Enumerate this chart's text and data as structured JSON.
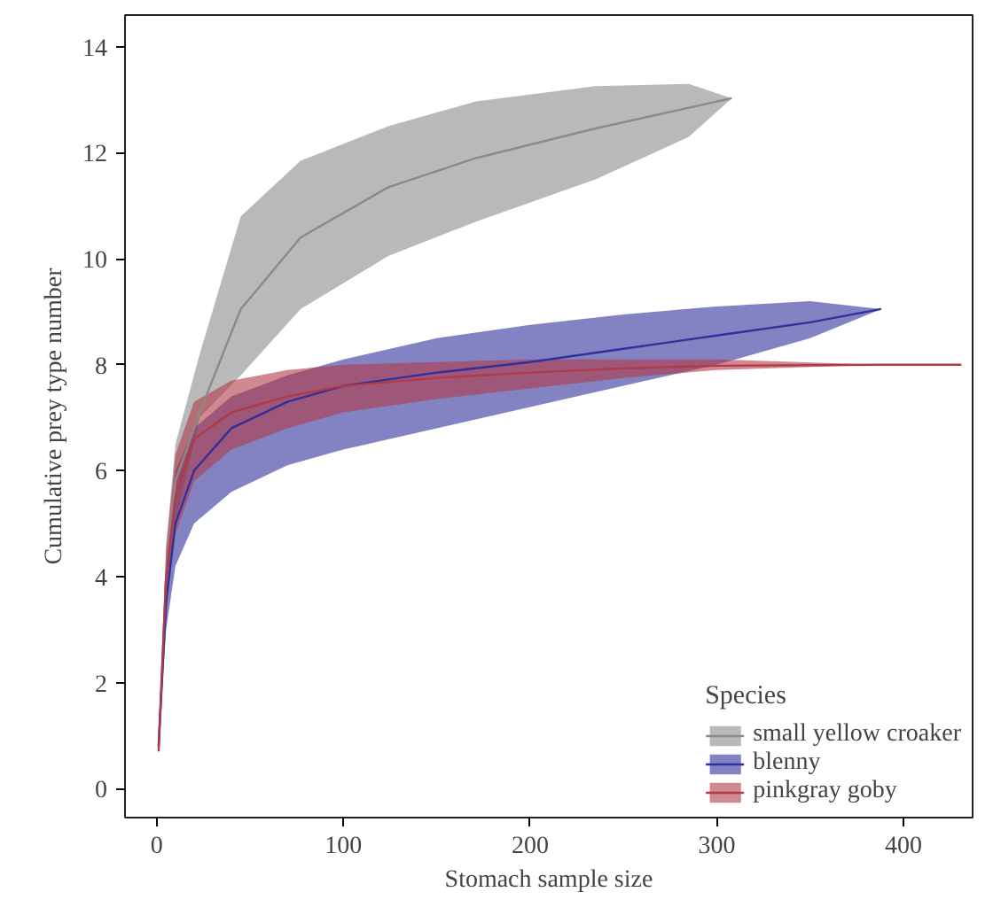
{
  "chart_data": {
    "type": "line",
    "xlabel": "Stomach sample size",
    "ylabel": "Cumulative prey type number",
    "legend_title": "Species",
    "legend": "bottom right",
    "grid": false,
    "xlim": [
      -17,
      437
    ],
    "ylim": [
      -0.55,
      14.6
    ],
    "xticks": [
      0,
      100,
      200,
      300,
      400
    ],
    "yticks": [
      0,
      2,
      4,
      6,
      8,
      10,
      12,
      14
    ],
    "series": [
      {
        "name": "small yellow croaker",
        "color": "#8a8a8a",
        "x": [
          1,
          5,
          10,
          23,
          45,
          77,
          124,
          171,
          235,
          285,
          308
        ],
        "values": [
          0.8,
          4.0,
          5.8,
          7.1,
          9.05,
          10.4,
          11.35,
          11.9,
          12.46,
          12.85,
          13.03
        ],
        "lower": [
          0.8,
          3.5,
          5.0,
          7.0,
          7.8,
          9.05,
          10.05,
          10.7,
          11.5,
          12.3,
          13.03
        ],
        "upper": [
          0.8,
          4.6,
          6.5,
          8.2,
          10.8,
          11.85,
          12.5,
          12.97,
          13.26,
          13.3,
          13.03
        ]
      },
      {
        "name": "blenny",
        "color": "#30309c",
        "x": [
          1,
          5,
          10,
          20,
          40,
          70,
          100,
          150,
          200,
          250,
          300,
          350,
          388
        ],
        "values": [
          0.8,
          3.5,
          5.0,
          6.0,
          6.8,
          7.3,
          7.6,
          7.85,
          8.05,
          8.3,
          8.55,
          8.8,
          9.05
        ],
        "lower": [
          0.8,
          3.0,
          4.2,
          5.0,
          5.6,
          6.1,
          6.4,
          6.8,
          7.2,
          7.6,
          8.0,
          8.5,
          9.05
        ],
        "upper": [
          0.8,
          4.0,
          6.0,
          6.8,
          7.4,
          7.8,
          8.1,
          8.5,
          8.75,
          8.95,
          9.1,
          9.2,
          9.05
        ]
      },
      {
        "name": "pinkgray goby",
        "color": "#b03a46",
        "x": [
          1,
          5,
          10,
          20,
          40,
          70,
          100,
          150,
          200,
          250,
          300,
          388,
          431
        ],
        "values": [
          0.7,
          4.0,
          5.5,
          6.6,
          7.1,
          7.4,
          7.6,
          7.75,
          7.85,
          7.93,
          7.98,
          8.0,
          8.0
        ],
        "lower": [
          0.7,
          3.5,
          4.8,
          5.8,
          6.4,
          6.8,
          7.1,
          7.35,
          7.55,
          7.75,
          7.9,
          8.0,
          null
        ],
        "upper": [
          0.7,
          4.5,
          6.3,
          7.3,
          7.7,
          7.9,
          8.0,
          8.05,
          8.1,
          8.1,
          8.1,
          8.0,
          null
        ]
      }
    ]
  }
}
